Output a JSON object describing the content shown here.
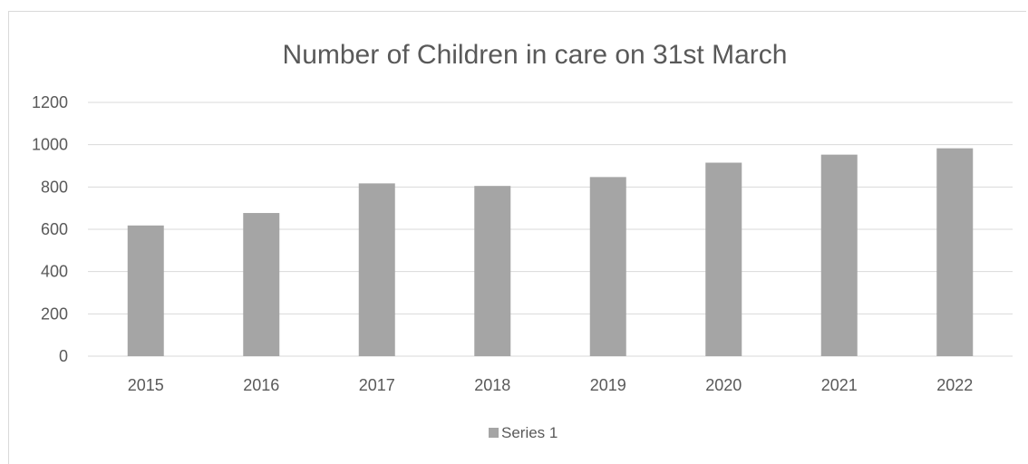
{
  "chart_data": {
    "type": "bar",
    "title": "Number of Children in care on 31st March",
    "xlabel": "",
    "ylabel": "",
    "categories": [
      "2015",
      "2016",
      "2017",
      "2018",
      "2019",
      "2020",
      "2021",
      "2022"
    ],
    "series": [
      {
        "name": "Series 1",
        "values": [
          618,
          677,
          817,
          805,
          847,
          915,
          953,
          983
        ],
        "color": "#a5a5a5"
      }
    ],
    "ylim": [
      0,
      1200
    ],
    "yticks": [
      0,
      200,
      400,
      600,
      800,
      1000,
      1200
    ],
    "grid": true,
    "legend": "bottom"
  }
}
